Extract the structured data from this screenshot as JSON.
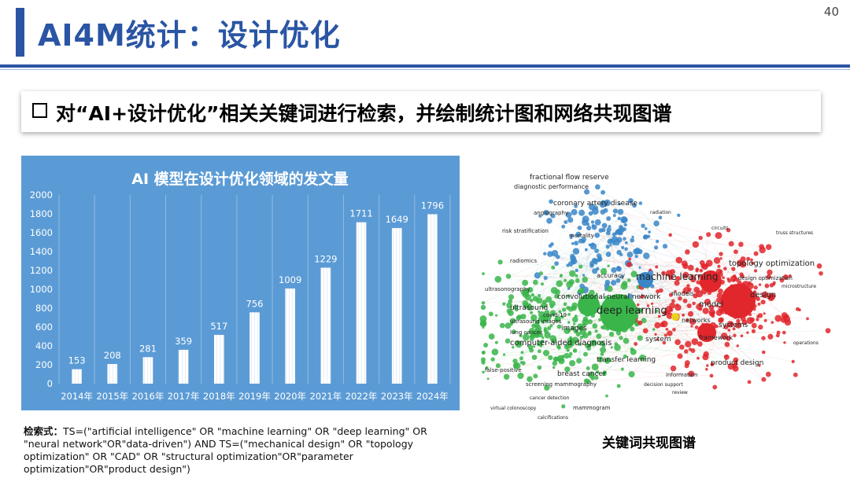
{
  "slide": {
    "title": "AI4M统计：设计优化",
    "page_number": "40",
    "heading": "对“AI+设计优化”相关关键词进行检索，并绘制统计图和网络共现图谱"
  },
  "query": {
    "prefix": "检索式：",
    "text": "TS=(\"artificial intelligence\" OR \"machine learning\" OR \"deep learning\" OR \"neural network\"OR\"data-driven\") AND TS=(\"mechanical design\" OR \"topology optimization\" OR \"CAD\" OR \"structural optimization\"OR\"parameter optimization\"OR\"product design\")"
  },
  "network": {
    "caption": "关键词共现图谱",
    "colors": {
      "blue": "#3a86c8",
      "green": "#39b54a",
      "red": "#e1262c",
      "yellow": "#e8d21e"
    },
    "labels": [
      {
        "text": "fractional flow reserve",
        "cluster": "blue"
      },
      {
        "text": "diagnostic performance",
        "cluster": "blue"
      },
      {
        "text": "coronary artery disease",
        "cluster": "blue"
      },
      {
        "text": "angiography",
        "cluster": "blue"
      },
      {
        "text": "risk stratification",
        "cluster": "blue"
      },
      {
        "text": "mortality",
        "cluster": "blue"
      },
      {
        "text": "radiomics",
        "cluster": "blue"
      },
      {
        "text": "accuracy",
        "cluster": "blue"
      },
      {
        "text": "machine learning",
        "cluster": "blue"
      },
      {
        "text": "radiation",
        "cluster": "blue"
      },
      {
        "text": "ultrasonography",
        "cluster": "green"
      },
      {
        "text": "convolutional neural network",
        "cluster": "green"
      },
      {
        "text": "ultrasound",
        "cluster": "green"
      },
      {
        "text": "deep learning",
        "cluster": "green"
      },
      {
        "text": "covid-19",
        "cluster": "green"
      },
      {
        "text": "ultrasound images",
        "cluster": "green"
      },
      {
        "text": "images",
        "cluster": "green"
      },
      {
        "text": "lung cancer",
        "cluster": "green"
      },
      {
        "text": "computer-aided diagnosis",
        "cluster": "green"
      },
      {
        "text": "transfer learning",
        "cluster": "green"
      },
      {
        "text": "false-positive",
        "cluster": "green"
      },
      {
        "text": "breast cancer",
        "cluster": "green"
      },
      {
        "text": "screening mammography",
        "cluster": "green"
      },
      {
        "text": "cancer detection",
        "cluster": "green"
      },
      {
        "text": "mammogram",
        "cluster": "green"
      },
      {
        "text": "virtual colonoscopy",
        "cluster": "green"
      },
      {
        "text": "calcifications",
        "cluster": "green"
      },
      {
        "text": "topology optimization",
        "cluster": "red"
      },
      {
        "text": "design optimization",
        "cluster": "red"
      },
      {
        "text": "models",
        "cluster": "red"
      },
      {
        "text": "model",
        "cluster": "red"
      },
      {
        "text": "design",
        "cluster": "red"
      },
      {
        "text": "networks",
        "cluster": "red"
      },
      {
        "text": "systems",
        "cluster": "red"
      },
      {
        "text": "system",
        "cluster": "red"
      },
      {
        "text": "framework",
        "cluster": "red"
      },
      {
        "text": "product design",
        "cluster": "red"
      },
      {
        "text": "information",
        "cluster": "red"
      },
      {
        "text": "decision support",
        "cluster": "red"
      },
      {
        "text": "truss structures",
        "cluster": "red"
      },
      {
        "text": "circuits",
        "cluster": "red"
      },
      {
        "text": "review",
        "cluster": "red"
      },
      {
        "text": "microstructure",
        "cluster": "red"
      },
      {
        "text": "operations",
        "cluster": "red"
      }
    ]
  },
  "chart_data": {
    "type": "bar",
    "title": "AI 模型在设计优化领域的发文量",
    "categories": [
      "2014年",
      "2015年",
      "2016年",
      "2017年",
      "2018年",
      "2019年",
      "2020年",
      "2021年",
      "2022年",
      "2023年",
      "2024年"
    ],
    "values": [
      153,
      208,
      281,
      359,
      517,
      756,
      1009,
      1229,
      1711,
      1649,
      1796
    ],
    "ylim": [
      0,
      2000
    ],
    "yticks": [
      0,
      200,
      400,
      600,
      800,
      1000,
      1200,
      1400,
      1600,
      1800,
      2000
    ],
    "grid": true,
    "xlabel": "",
    "ylabel": "",
    "colors": {
      "background": "#5b9bd5",
      "bar": "#ffffff",
      "text": "#ffffff"
    }
  }
}
